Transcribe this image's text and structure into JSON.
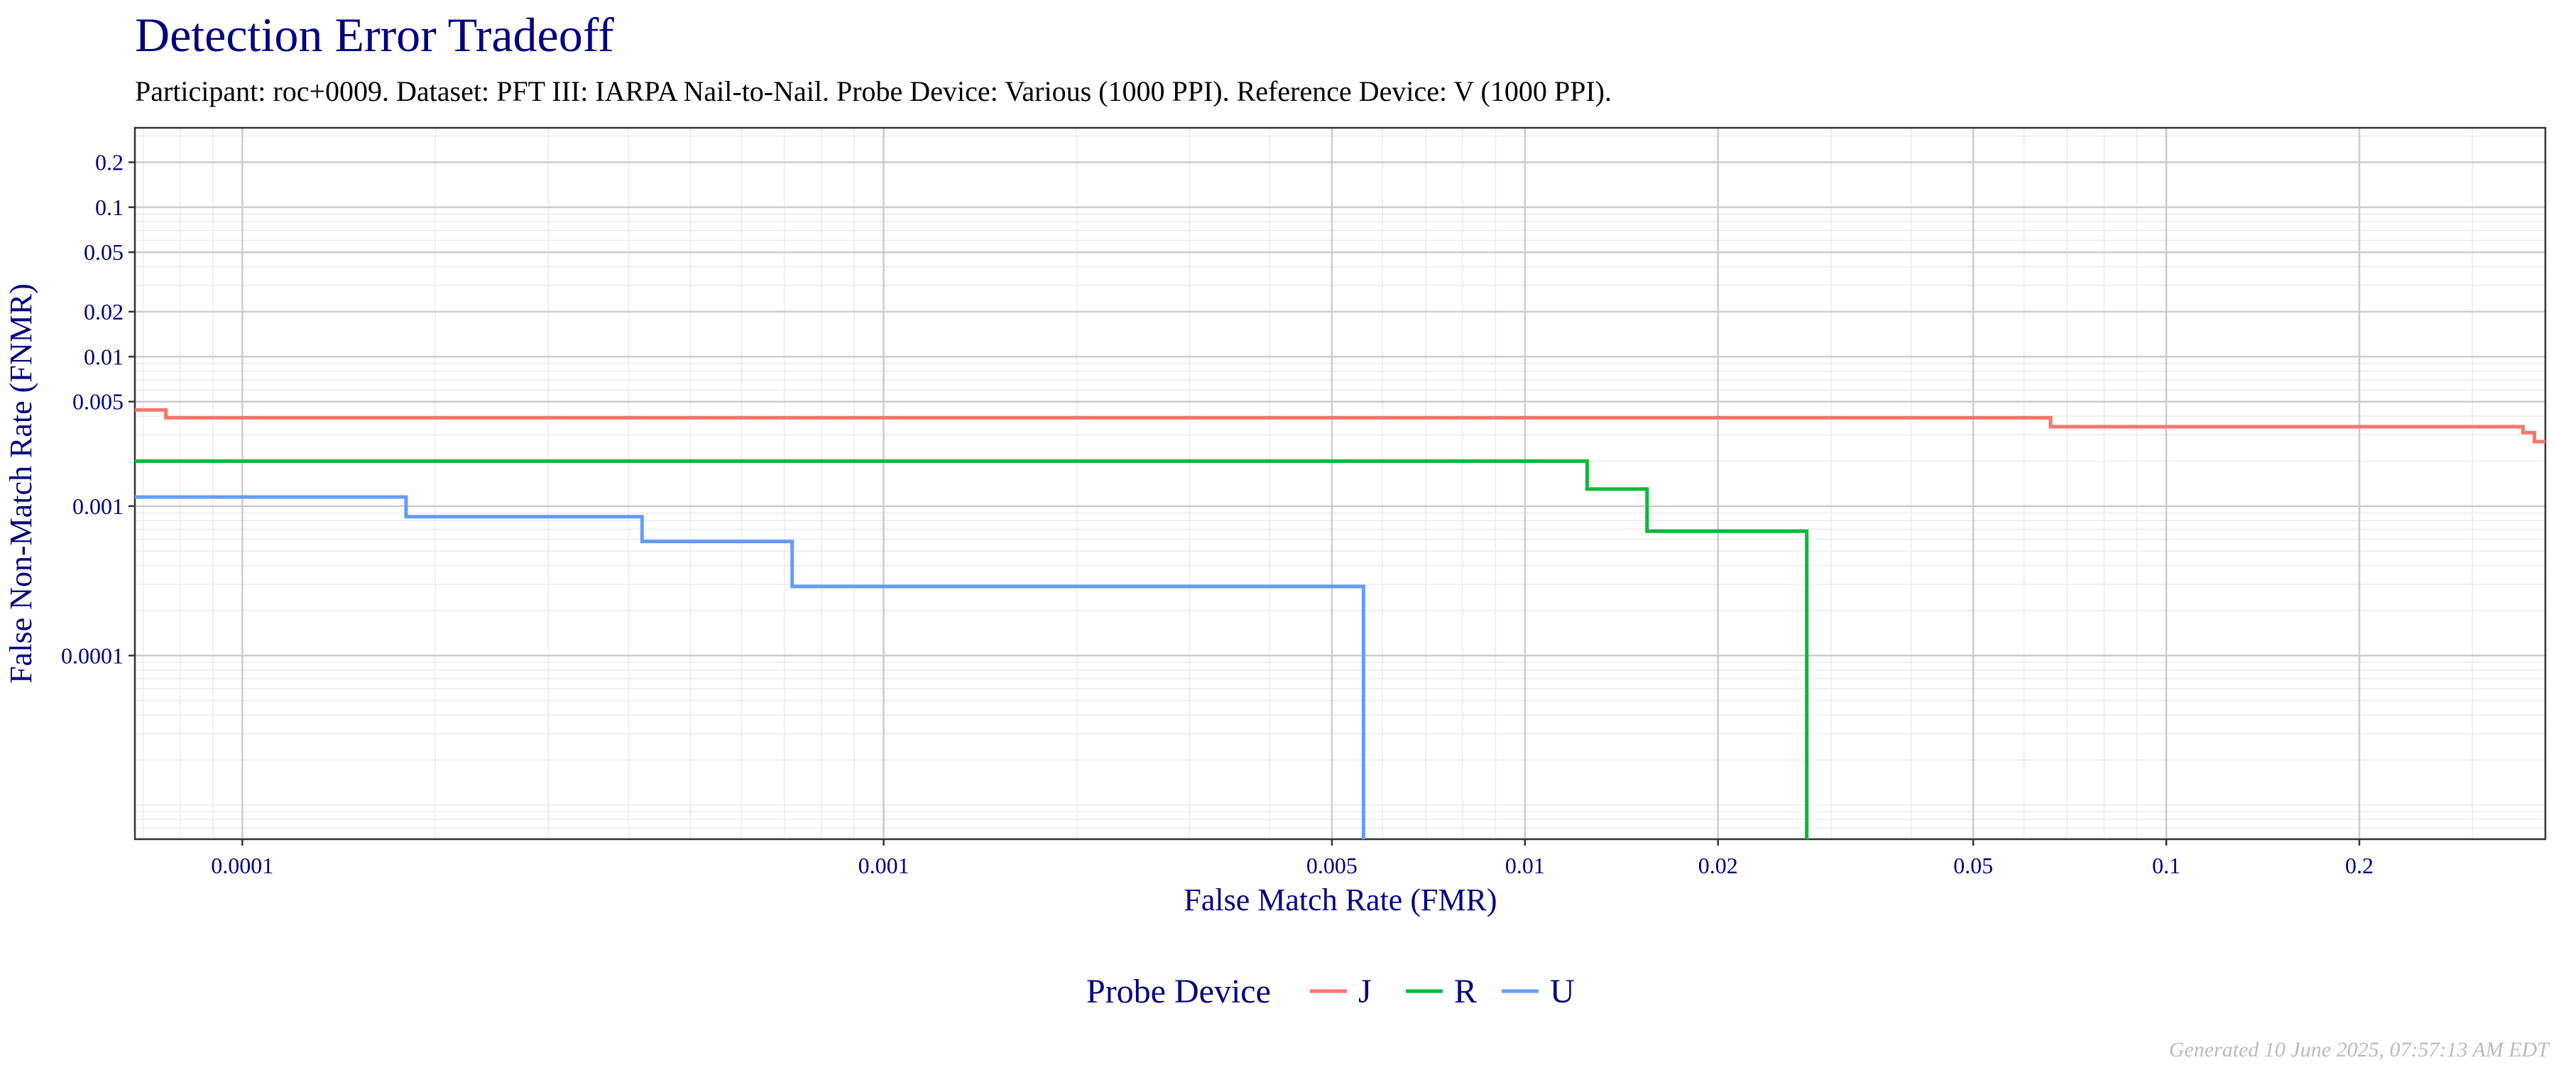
{
  "chart_data": {
    "type": "line",
    "title": "Detection Error Tradeoff",
    "subtitle": "Participant: roc+0009. Dataset: PFT III: IARPA Nail-to-Nail. Probe Device: Various (1000 PPI). Reference Device: V (1000 PPI).",
    "xlabel": "False Match Rate (FMR)",
    "ylabel": "False Non-Match Rate (FNMR)",
    "x_scale": "log",
    "y_scale": "log",
    "xlim": [
      6.8e-05,
      0.39
    ],
    "ylim": [
      5.9e-06,
      0.34
    ],
    "x_ticks": [
      {
        "value": 0.0001,
        "label": "0.0001"
      },
      {
        "value": 0.001,
        "label": "0.001"
      },
      {
        "value": 0.005,
        "label": "0.005"
      },
      {
        "value": 0.01,
        "label": "0.01"
      },
      {
        "value": 0.02,
        "label": "0.02"
      },
      {
        "value": 0.05,
        "label": "0.05"
      },
      {
        "value": 0.1,
        "label": "0.1"
      },
      {
        "value": 0.2,
        "label": "0.2"
      }
    ],
    "y_ticks": [
      {
        "value": 0.0001,
        "label": "0.0001"
      },
      {
        "value": 0.001,
        "label": "0.001"
      },
      {
        "value": 0.005,
        "label": "0.005"
      },
      {
        "value": 0.01,
        "label": "0.01"
      },
      {
        "value": 0.02,
        "label": "0.02"
      },
      {
        "value": 0.05,
        "label": "0.05"
      },
      {
        "value": 0.1,
        "label": "0.1"
      },
      {
        "value": 0.2,
        "label": "0.2"
      }
    ],
    "grid": true,
    "legend_title": "Probe Device",
    "legend_position": "bottom",
    "series": [
      {
        "name": "J",
        "color": "#F8766D",
        "points": [
          [
            6.8e-05,
            0.0044
          ],
          [
            7.6e-05,
            0.0044
          ],
          [
            7.6e-05,
            0.0039
          ],
          [
            0.066,
            0.0039
          ],
          [
            0.066,
            0.0034
          ],
          [
            0.36,
            0.0034
          ],
          [
            0.36,
            0.0031
          ],
          [
            0.375,
            0.0031
          ],
          [
            0.375,
            0.0027
          ],
          [
            0.39,
            0.0027
          ]
        ]
      },
      {
        "name": "R",
        "color": "#00BA38",
        "points": [
          [
            6.8e-05,
            0.002
          ],
          [
            0.0125,
            0.002
          ],
          [
            0.0125,
            0.0013
          ],
          [
            0.0155,
            0.0013
          ],
          [
            0.0155,
            0.00068
          ],
          [
            0.0275,
            0.00068
          ],
          [
            0.0275,
            5.9e-06
          ]
        ]
      },
      {
        "name": "U",
        "color": "#619CFF",
        "points": [
          [
            6.8e-05,
            0.00115
          ],
          [
            0.00018,
            0.00115
          ],
          [
            0.00018,
            0.00085
          ],
          [
            0.00042,
            0.00085
          ],
          [
            0.00042,
            0.00058
          ],
          [
            0.00072,
            0.00058
          ],
          [
            0.00072,
            0.00029
          ],
          [
            0.0056,
            0.00029
          ],
          [
            0.0056,
            5.9e-06
          ]
        ]
      }
    ]
  },
  "footer": {
    "generated": "Generated 10 June 2025, 07:57:13 AM EDT"
  }
}
